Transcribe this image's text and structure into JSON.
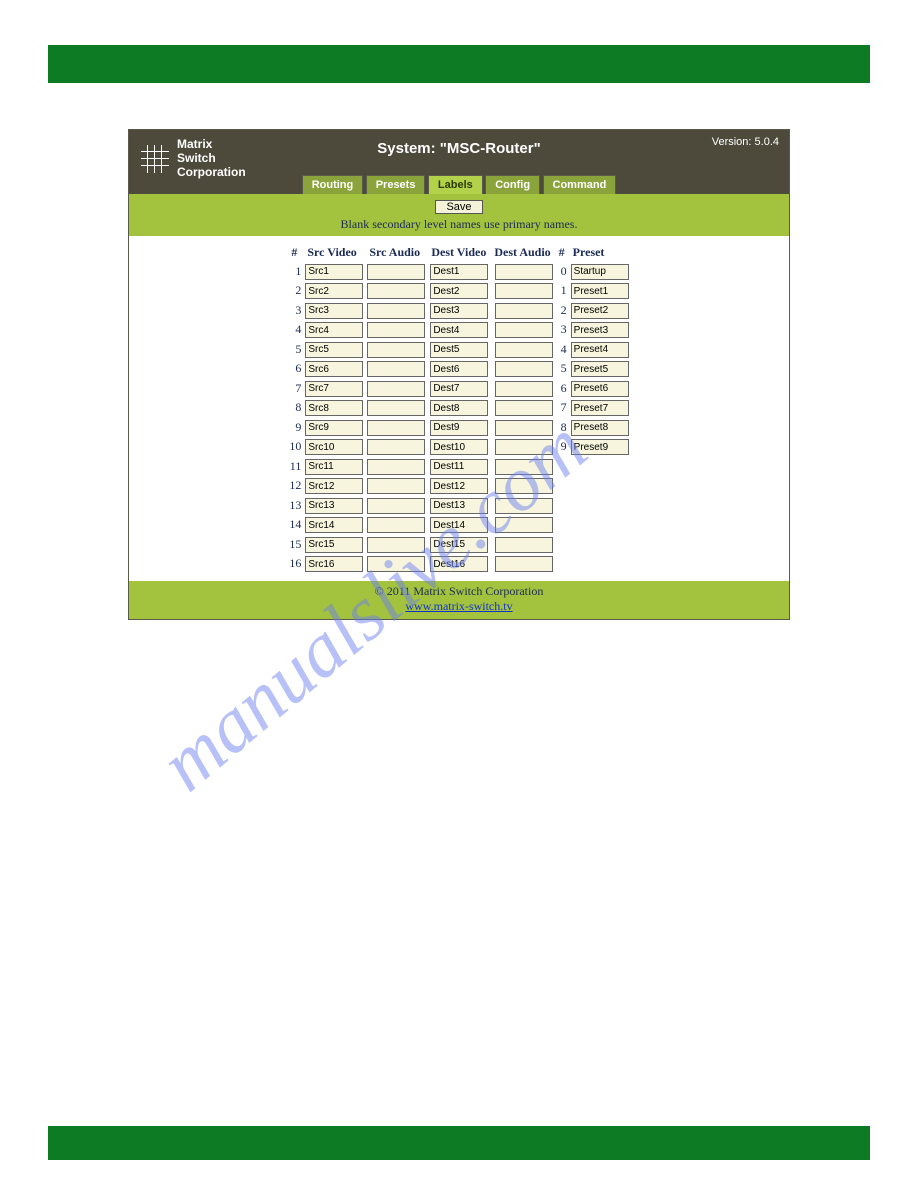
{
  "brand": {
    "line1": "Matrix",
    "line2": "Switch",
    "line3": "Corporation"
  },
  "system_title": "System: \"MSC-Router\"",
  "version_label": "Version: 5.0.4",
  "tabs": {
    "routing": "Routing",
    "presets": "Presets",
    "labels": "Labels",
    "config": "Config",
    "command": "Command"
  },
  "save_label": "Save",
  "hint_text": "Blank secondary level names use primary names.",
  "columns": {
    "num": "#",
    "src_video": "Src Video",
    "src_audio": "Src Audio",
    "dest_video": "Dest Video",
    "dest_audio": "Dest Audio",
    "preset_num": "#",
    "preset": "Preset"
  },
  "rows": [
    {
      "n": "1",
      "sv": "Src1",
      "sa": "",
      "dv": "Dest1",
      "da": "",
      "pn": "0",
      "p": "Startup"
    },
    {
      "n": "2",
      "sv": "Src2",
      "sa": "",
      "dv": "Dest2",
      "da": "",
      "pn": "1",
      "p": "Preset1"
    },
    {
      "n": "3",
      "sv": "Src3",
      "sa": "",
      "dv": "Dest3",
      "da": "",
      "pn": "2",
      "p": "Preset2"
    },
    {
      "n": "4",
      "sv": "Src4",
      "sa": "",
      "dv": "Dest4",
      "da": "",
      "pn": "3",
      "p": "Preset3"
    },
    {
      "n": "5",
      "sv": "Src5",
      "sa": "",
      "dv": "Dest5",
      "da": "",
      "pn": "4",
      "p": "Preset4"
    },
    {
      "n": "6",
      "sv": "Src6",
      "sa": "",
      "dv": "Dest6",
      "da": "",
      "pn": "5",
      "p": "Preset5"
    },
    {
      "n": "7",
      "sv": "Src7",
      "sa": "",
      "dv": "Dest7",
      "da": "",
      "pn": "6",
      "p": "Preset6"
    },
    {
      "n": "8",
      "sv": "Src8",
      "sa": "",
      "dv": "Dest8",
      "da": "",
      "pn": "7",
      "p": "Preset7"
    },
    {
      "n": "9",
      "sv": "Src9",
      "sa": "",
      "dv": "Dest9",
      "da": "",
      "pn": "8",
      "p": "Preset8"
    },
    {
      "n": "10",
      "sv": "Src10",
      "sa": "",
      "dv": "Dest10",
      "da": "",
      "pn": "9",
      "p": "Preset9"
    },
    {
      "n": "11",
      "sv": "Src11",
      "sa": "",
      "dv": "Dest11",
      "da": ""
    },
    {
      "n": "12",
      "sv": "Src12",
      "sa": "",
      "dv": "Dest12",
      "da": ""
    },
    {
      "n": "13",
      "sv": "Src13",
      "sa": "",
      "dv": "Dest13",
      "da": ""
    },
    {
      "n": "14",
      "sv": "Src14",
      "sa": "",
      "dv": "Dest14",
      "da": ""
    },
    {
      "n": "15",
      "sv": "Src15",
      "sa": "",
      "dv": "Dest15",
      "da": ""
    },
    {
      "n": "16",
      "sv": "Src16",
      "sa": "",
      "dv": "Dest16",
      "da": ""
    }
  ],
  "footer": {
    "copyright": "© 2011 Matrix Switch Corporation",
    "link": "www.matrix-switch.tv"
  },
  "watermark": "manualslive.com"
}
